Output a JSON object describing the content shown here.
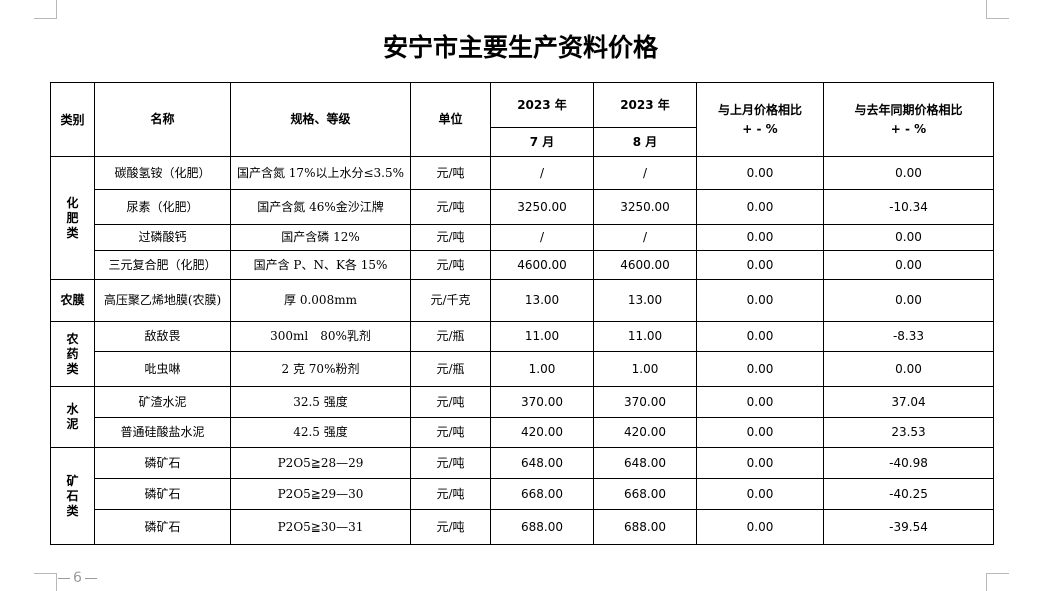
{
  "title": "安宁市主要生产资料价格",
  "page_number": "6",
  "headers": {
    "category": "类别",
    "name": "名称",
    "spec": "规格、等级",
    "unit": "单位",
    "year1": "2023 年",
    "year2": "2023 年",
    "month1": "7 月",
    "month2": "8 月",
    "mom": "与上月价格相比",
    "yoy": "与去年同期价格相比",
    "pct": "+ - %"
  },
  "groups": [
    {
      "category": "化肥类",
      "rows": [
        {
          "name": "碳酸氢铵（化肥）",
          "spec": "国产含氮 17%以上水分≤3.5%",
          "unit": "元/吨",
          "jul": "/",
          "aug": "/",
          "mom": "0.00",
          "yoy": "0.00"
        },
        {
          "name": "尿素（化肥）",
          "spec": "国产含氮 46%金沙江牌",
          "unit": "元/吨",
          "jul": "3250.00",
          "aug": "3250.00",
          "mom": "0.00",
          "yoy": "-10.34"
        },
        {
          "name": "过磷酸钙",
          "spec": "国产含磷 12%",
          "unit": "元/吨",
          "jul": "/",
          "aug": "/",
          "mom": "0.00",
          "yoy": "0.00"
        },
        {
          "name": "三元复合肥（化肥）",
          "spec": "国产含 P、N、K各 15%",
          "unit": "元/吨",
          "jul": "4600.00",
          "aug": "4600.00",
          "mom": "0.00",
          "yoy": "0.00"
        }
      ]
    },
    {
      "category": "农膜",
      "rows": [
        {
          "name": "高压聚乙烯地膜(农膜)",
          "spec": "厚 0.008mm",
          "unit": "元/千克",
          "jul": "13.00",
          "aug": "13.00",
          "mom": "0.00",
          "yoy": "0.00"
        }
      ]
    },
    {
      "category": "农药类",
      "rows": [
        {
          "name": "敌敌畏",
          "spec": "300ml　80%乳剂",
          "unit": "元/瓶",
          "jul": "11.00",
          "aug": "11.00",
          "mom": "0.00",
          "yoy": "-8.33"
        },
        {
          "name": "吡虫啉",
          "spec": "2 克 70%粉剂",
          "unit": "元/瓶",
          "jul": "1.00",
          "aug": "1.00",
          "mom": "0.00",
          "yoy": "0.00"
        }
      ]
    },
    {
      "category": "水泥",
      "rows": [
        {
          "name": "矿渣水泥",
          "spec": "32.5 强度",
          "unit": "元/吨",
          "jul": "370.00",
          "aug": "370.00",
          "mom": "0.00",
          "yoy": "37.04"
        },
        {
          "name": "普通硅酸盐水泥",
          "spec": "42.5 强度",
          "unit": "元/吨",
          "jul": "420.00",
          "aug": "420.00",
          "mom": "0.00",
          "yoy": "23.53"
        }
      ]
    },
    {
      "category": "矿石类",
      "rows": [
        {
          "name": "磷矿石",
          "spec": "P2O5≧28—29",
          "unit": "元/吨",
          "jul": "648.00",
          "aug": "648.00",
          "mom": "0.00",
          "yoy": "-40.98"
        },
        {
          "name": "磷矿石",
          "spec": "P2O5≧29—30",
          "unit": "元/吨",
          "jul": "668.00",
          "aug": "668.00",
          "mom": "0.00",
          "yoy": "-40.25"
        },
        {
          "name": "磷矿石",
          "spec": "P2O5≧30—31",
          "unit": "元/吨",
          "jul": "688.00",
          "aug": "688.00",
          "mom": "0.00",
          "yoy": "-39.54"
        }
      ]
    }
  ]
}
